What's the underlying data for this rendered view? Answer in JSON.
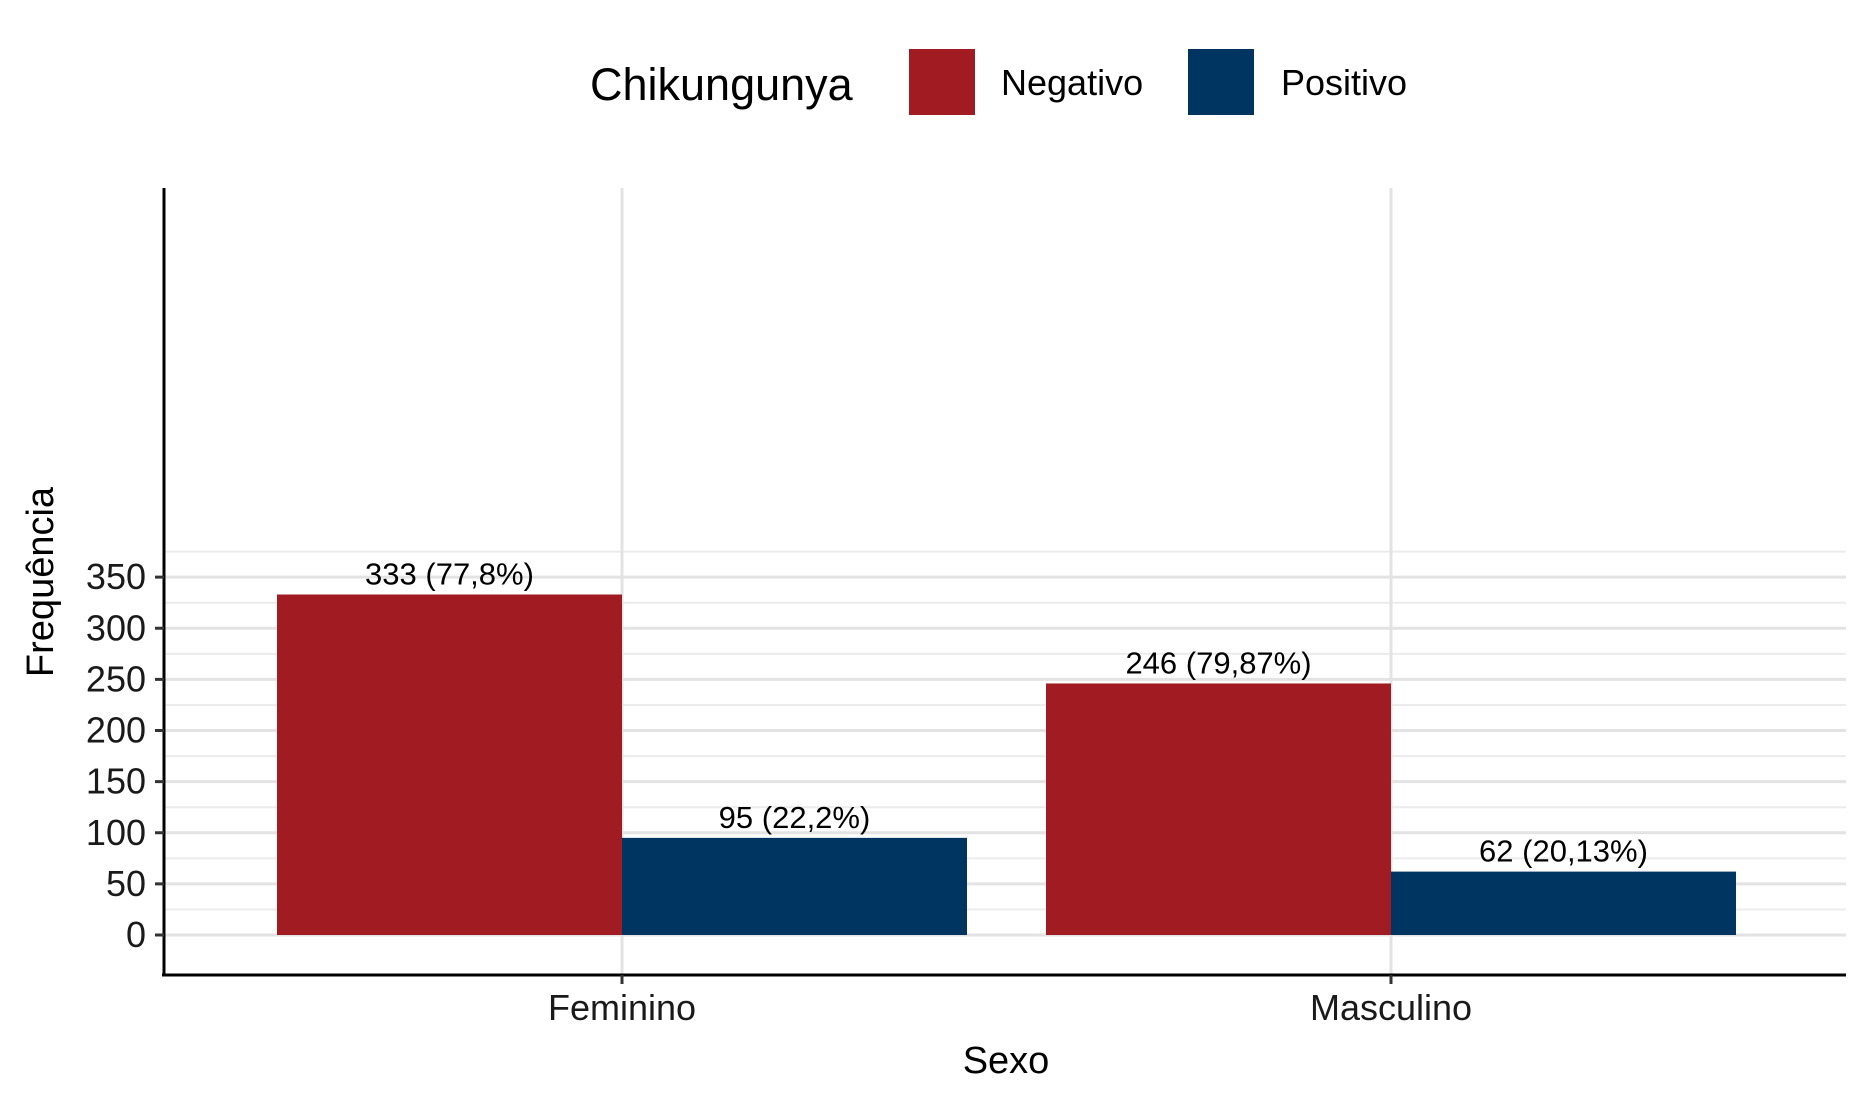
{
  "chart_data": {
    "type": "bar",
    "xlabel": "Sexo",
    "ylabel": "Frequência",
    "categories": [
      "Feminino",
      "Masculino"
    ],
    "series": [
      {
        "name": "Negativo",
        "color": "#A01C22",
        "values": [
          333,
          246
        ],
        "labels": [
          "333 (77,8%)",
          "246 (79,87%)"
        ]
      },
      {
        "name": "Positivo",
        "color": "#003461",
        "values": [
          95,
          62
        ],
        "labels": [
          "95 (22,2%)",
          "62 (20,13%)"
        ]
      }
    ],
    "legend": {
      "title": "Chikungunya",
      "position": "top"
    },
    "ylim": [
      0,
      365
    ],
    "yticks": [
      0,
      50,
      100,
      150,
      200,
      250,
      300,
      350
    ],
    "grid": true
  }
}
